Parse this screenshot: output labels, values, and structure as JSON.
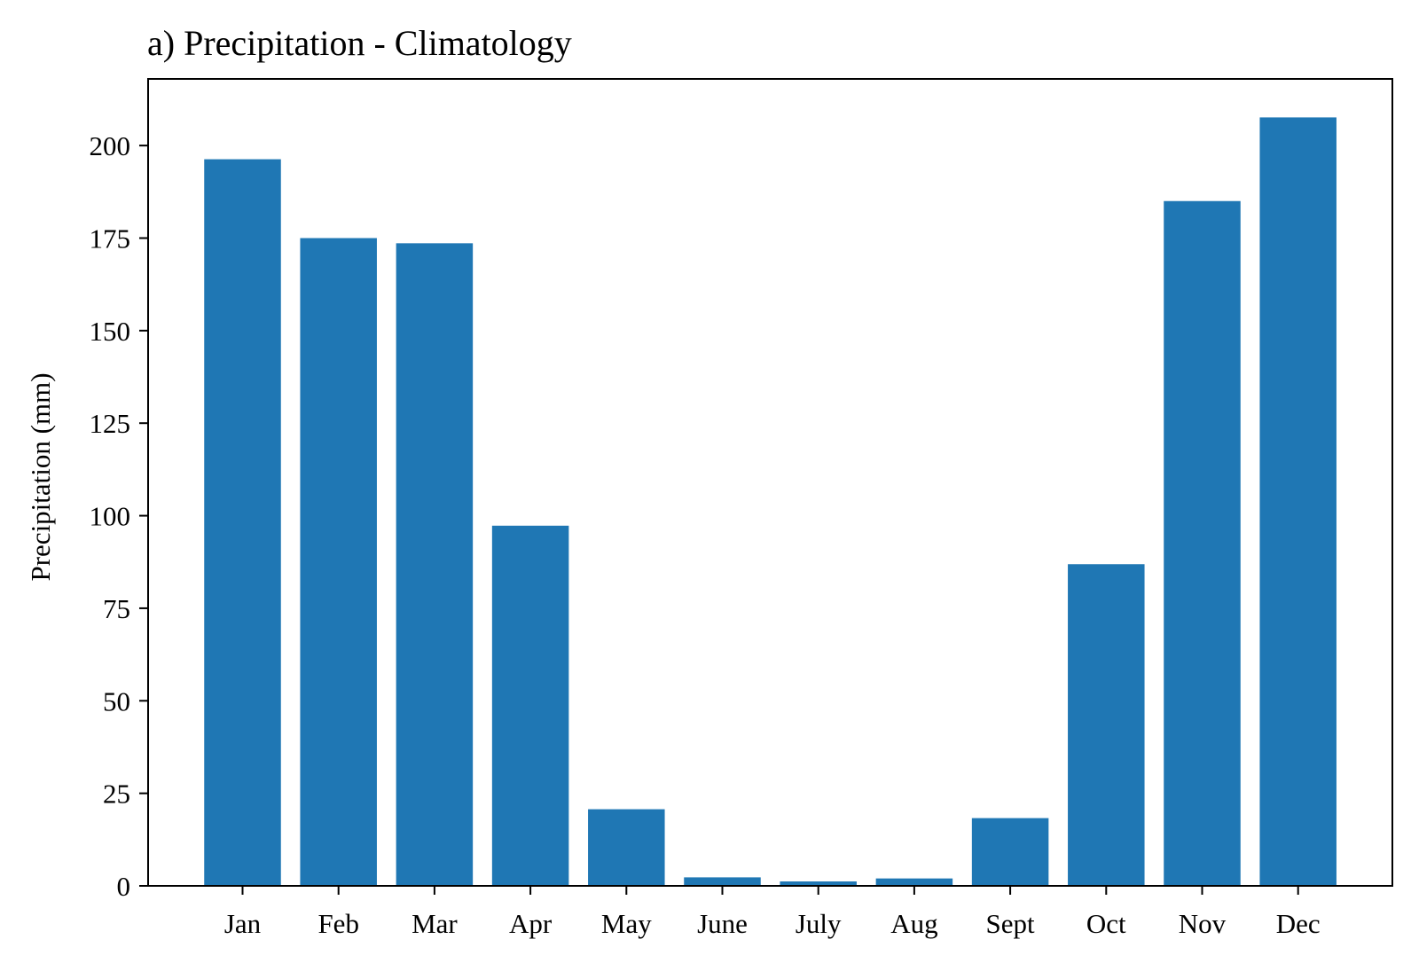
{
  "chart_data": {
    "type": "bar",
    "title": "a) Precipitation - Climatology",
    "xlabel": "",
    "ylabel": "Precipitation (mm)",
    "categories": [
      "Jan",
      "Feb",
      "Mar",
      "Apr",
      "May",
      "June",
      "July",
      "Aug",
      "Sept",
      "Oct",
      "Nov",
      "Dec"
    ],
    "values": [
      196.3,
      175.0,
      173.6,
      97.3,
      20.7,
      2.3,
      1.2,
      2.0,
      18.3,
      86.9,
      185.0,
      207.6
    ],
    "ylim": [
      0,
      218
    ],
    "yticks": [
      0,
      25,
      50,
      75,
      100,
      125,
      150,
      175,
      200
    ],
    "bar_color": "#1f77b4",
    "grid": false,
    "legend": "none"
  }
}
